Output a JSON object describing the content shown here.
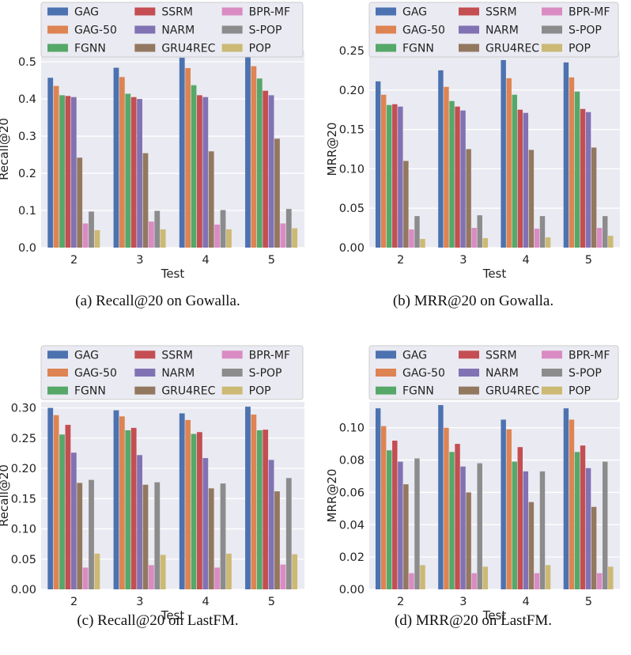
{
  "chart_data": [
    {
      "type": "bar",
      "title": "",
      "caption": "(a)  Recall@20 on Gowalla.",
      "xlabel": "Test",
      "ylabel": "Recall@20",
      "categories": [
        "2",
        "3",
        "4",
        "5"
      ],
      "ylim": [
        0,
        0.53
      ],
      "yticks": [
        "0.0",
        "0.1",
        "0.2",
        "0.3",
        "0.4",
        "0.5"
      ],
      "ytick_values": [
        0,
        0.1,
        0.2,
        0.3,
        0.4,
        0.5
      ],
      "series": [
        {
          "name": "GAG",
          "color": "#4c72b0",
          "values": [
            0.457,
            0.484,
            0.511,
            0.513
          ]
        },
        {
          "name": "GAG-50",
          "color": "#dd8452",
          "values": [
            0.435,
            0.459,
            0.483,
            0.488
          ]
        },
        {
          "name": "FGNN",
          "color": "#55a868",
          "values": [
            0.41,
            0.414,
            0.437,
            0.455
          ]
        },
        {
          "name": "SSRM",
          "color": "#c44e52",
          "values": [
            0.408,
            0.405,
            0.41,
            0.422
          ]
        },
        {
          "name": "NARM",
          "color": "#8172b3",
          "values": [
            0.405,
            0.4,
            0.405,
            0.41
          ]
        },
        {
          "name": "GRU4REC",
          "color": "#937860",
          "values": [
            0.242,
            0.254,
            0.259,
            0.293
          ]
        },
        {
          "name": "BPR-MF",
          "color": "#da8bc3",
          "values": [
            0.065,
            0.07,
            0.062,
            0.065
          ]
        },
        {
          "name": "S-POP",
          "color": "#8c8c8c",
          "values": [
            0.097,
            0.099,
            0.101,
            0.104
          ]
        },
        {
          "name": "POP",
          "color": "#ccb974",
          "values": [
            0.047,
            0.049,
            0.049,
            0.052
          ]
        }
      ]
    },
    {
      "type": "bar",
      "title": "",
      "caption": "(b)  MRR@20 on Gowalla.",
      "xlabel": "Test",
      "ylabel": "MRR@20",
      "categories": [
        "2",
        "3",
        "4",
        "5"
      ],
      "ylim": [
        0,
        0.25
      ],
      "yticks": [
        "0.00",
        "0.05",
        "0.10",
        "0.15",
        "0.20",
        "0.25"
      ],
      "ytick_values": [
        0,
        0.05,
        0.1,
        0.15,
        0.2,
        0.25
      ],
      "series": [
        {
          "name": "GAG",
          "color": "#4c72b0",
          "values": [
            0.211,
            0.225,
            0.238,
            0.235
          ]
        },
        {
          "name": "GAG-50",
          "color": "#dd8452",
          "values": [
            0.194,
            0.204,
            0.215,
            0.216
          ]
        },
        {
          "name": "FGNN",
          "color": "#55a868",
          "values": [
            0.181,
            0.186,
            0.194,
            0.198
          ]
        },
        {
          "name": "SSRM",
          "color": "#c44e52",
          "values": [
            0.182,
            0.179,
            0.175,
            0.176
          ]
        },
        {
          "name": "NARM",
          "color": "#8172b3",
          "values": [
            0.179,
            0.174,
            0.171,
            0.172
          ]
        },
        {
          "name": "GRU4REC",
          "color": "#937860",
          "values": [
            0.11,
            0.125,
            0.124,
            0.127
          ]
        },
        {
          "name": "BPR-MF",
          "color": "#da8bc3",
          "values": [
            0.023,
            0.025,
            0.024,
            0.025
          ]
        },
        {
          "name": "S-POP",
          "color": "#8c8c8c",
          "values": [
            0.04,
            0.041,
            0.04,
            0.04
          ]
        },
        {
          "name": "POP",
          "color": "#ccb974",
          "values": [
            0.011,
            0.012,
            0.013,
            0.015
          ]
        }
      ]
    },
    {
      "type": "bar",
      "title": "",
      "caption": "(c)  Recall@20 on LastFM.",
      "xlabel": "Test",
      "ylabel": "Recall@20",
      "categories": [
        "2",
        "3",
        "4",
        "5"
      ],
      "ylim": [
        0,
        0.31
      ],
      "yticks": [
        "0.00",
        "0.05",
        "0.10",
        "0.15",
        "0.20",
        "0.25",
        "0.30"
      ],
      "ytick_values": [
        0,
        0.05,
        0.1,
        0.15,
        0.2,
        0.25,
        0.3
      ],
      "series": [
        {
          "name": "GAG",
          "color": "#4c72b0",
          "values": [
            0.3,
            0.296,
            0.291,
            0.302
          ]
        },
        {
          "name": "GAG-50",
          "color": "#dd8452",
          "values": [
            0.288,
            0.286,
            0.28,
            0.289
          ]
        },
        {
          "name": "FGNN",
          "color": "#55a868",
          "values": [
            0.256,
            0.263,
            0.257,
            0.263
          ]
        },
        {
          "name": "SSRM",
          "color": "#c44e52",
          "values": [
            0.272,
            0.267,
            0.26,
            0.264
          ]
        },
        {
          "name": "NARM",
          "color": "#8172b3",
          "values": [
            0.226,
            0.222,
            0.217,
            0.214
          ]
        },
        {
          "name": "GRU4REC",
          "color": "#937860",
          "values": [
            0.176,
            0.173,
            0.167,
            0.162
          ]
        },
        {
          "name": "BPR-MF",
          "color": "#da8bc3",
          "values": [
            0.036,
            0.04,
            0.036,
            0.041
          ]
        },
        {
          "name": "S-POP",
          "color": "#8c8c8c",
          "values": [
            0.181,
            0.177,
            0.175,
            0.184
          ]
        },
        {
          "name": "POP",
          "color": "#ccb974",
          "values": [
            0.059,
            0.057,
            0.059,
            0.058
          ]
        }
      ]
    },
    {
      "type": "bar",
      "title": "",
      "caption": "(d)  MRR@20 on LastFM.",
      "xlabel": "Test",
      "ylabel": "MRR@20",
      "categories": [
        "2",
        "3",
        "4",
        "5"
      ],
      "ylim": [
        0,
        0.116
      ],
      "yticks": [
        "0.00",
        "0.02",
        "0.04",
        "0.06",
        "0.08",
        "0.10"
      ],
      "ytick_values": [
        0,
        0.02,
        0.04,
        0.06,
        0.08,
        0.1
      ],
      "series": [
        {
          "name": "GAG",
          "color": "#4c72b0",
          "values": [
            0.112,
            0.114,
            0.105,
            0.112
          ]
        },
        {
          "name": "GAG-50",
          "color": "#dd8452",
          "values": [
            0.101,
            0.1,
            0.099,
            0.105
          ]
        },
        {
          "name": "FGNN",
          "color": "#55a868",
          "values": [
            0.086,
            0.085,
            0.079,
            0.085
          ]
        },
        {
          "name": "SSRM",
          "color": "#c44e52",
          "values": [
            0.092,
            0.09,
            0.088,
            0.089
          ]
        },
        {
          "name": "NARM",
          "color": "#8172b3",
          "values": [
            0.079,
            0.076,
            0.073,
            0.075
          ]
        },
        {
          "name": "GRU4REC",
          "color": "#937860",
          "values": [
            0.065,
            0.06,
            0.054,
            0.051
          ]
        },
        {
          "name": "BPR-MF",
          "color": "#da8bc3",
          "values": [
            0.01,
            0.01,
            0.01,
            0.01
          ]
        },
        {
          "name": "S-POP",
          "color": "#8c8c8c",
          "values": [
            0.081,
            0.078,
            0.073,
            0.079
          ]
        },
        {
          "name": "POP",
          "color": "#ccb974",
          "values": [
            0.015,
            0.014,
            0.015,
            0.014
          ]
        }
      ]
    }
  ]
}
